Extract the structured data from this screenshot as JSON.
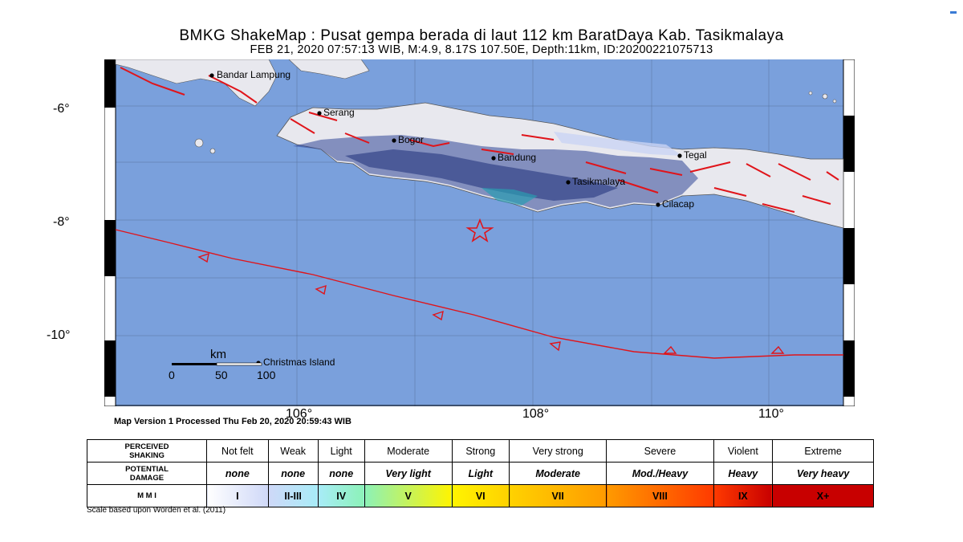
{
  "header": {
    "title": "BMKG ShakeMap : Pusat gempa berada di laut 112 km BaratDaya Kab. Tasikmalaya",
    "subtitle": "FEB 21, 2020 07:57:13 WIB, M:4.9, 8.17S 107.50E, Depth:11km, ID:20200221075713"
  },
  "map": {
    "lat_labels": [
      "-6°",
      "-8°",
      "-10°"
    ],
    "lon_labels": [
      "106°",
      "108°",
      "110°"
    ],
    "cities": [
      "Bandar Lampung",
      "Serang",
      "Bogor",
      "Bandung",
      "Tegal",
      "Tasikmalaya",
      "Cilacap",
      "Christmas Island"
    ],
    "scale": {
      "unit": "km",
      "ticks": [
        "0",
        "50",
        "100"
      ]
    },
    "epicenter": {
      "lat": -8.17,
      "lon": 107.5,
      "marker": "star-icon"
    },
    "colors": {
      "sea": "#7aa0dc",
      "land": "#e8e8ee",
      "fault": "#e0141a",
      "intensity_dark": "#2c3e8c"
    },
    "version_text": "Map Version 1 Processed Thu Feb 20, 2020 20:59:43 WIB"
  },
  "legend": {
    "row_labels": {
      "shaking": [
        "PERCEIVED",
        "SHAKING"
      ],
      "damage": [
        "POTENTIAL",
        "DAMAGE"
      ],
      "mmi": "M M I"
    },
    "shaking": [
      "Not felt",
      "Weak",
      "Light",
      "Moderate",
      "Strong",
      "Very strong",
      "Severe",
      "Violent",
      "Extreme"
    ],
    "damage": [
      "none",
      "none",
      "none",
      "Very light",
      "Light",
      "Moderate",
      "Mod./Heavy",
      "Heavy",
      "Very heavy"
    ],
    "mmi": [
      "I",
      "II-III",
      "IV",
      "V",
      "VI",
      "VII",
      "VIII",
      "IX",
      "X+"
    ],
    "mmi_colors": [
      "#ffffff",
      "#cfd8f8",
      "#a8ecf8",
      "#8cf2b8",
      "#fff400",
      "#ffd200",
      "#ff9a00",
      "#ff3a00",
      "#c80000"
    ],
    "note": "Scale based upon Worden et al. (2011)"
  }
}
